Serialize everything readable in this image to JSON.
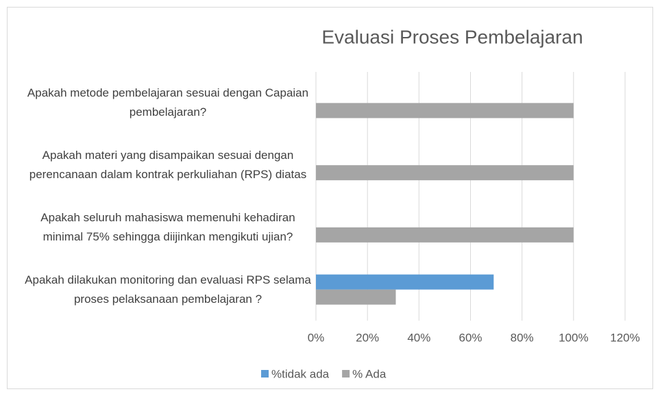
{
  "chart_data": {
    "type": "hbar",
    "title": "Evaluasi Proses Pembelajaran",
    "categories": [
      "Apakah metode pembelajaran sesuai dengan Capaian pembelajaran?",
      "Apakah materi yang disampaikan sesuai dengan perencanaan dalam kontrak perkuliahan (RPS) diatas",
      "Apakah seluruh mahasiswa memenuhi kehadiran minimal 75% sehingga diijinkan mengikuti ujian?",
      "Apakah dilakukan monitoring dan evaluasi RPS selama proses pelaksanaan pembelajaran ?"
    ],
    "series": [
      {
        "name": "%tidak ada",
        "color": "#5b9bd5",
        "values": [
          0,
          0,
          0,
          69
        ]
      },
      {
        "name": "% Ada",
        "color": "#a5a5a5",
        "values": [
          100,
          100,
          100,
          31
        ]
      }
    ],
    "xlim": [
      0,
      120
    ],
    "xticks": [
      {
        "value": 0,
        "label": "0%"
      },
      {
        "value": 20,
        "label": "20%"
      },
      {
        "value": 40,
        "label": "40%"
      },
      {
        "value": 60,
        "label": "60%"
      },
      {
        "value": 80,
        "label": "80%"
      },
      {
        "value": 100,
        "label": "100%"
      },
      {
        "value": 120,
        "label": "120%"
      }
    ],
    "grid": true,
    "legend": "bottom"
  }
}
